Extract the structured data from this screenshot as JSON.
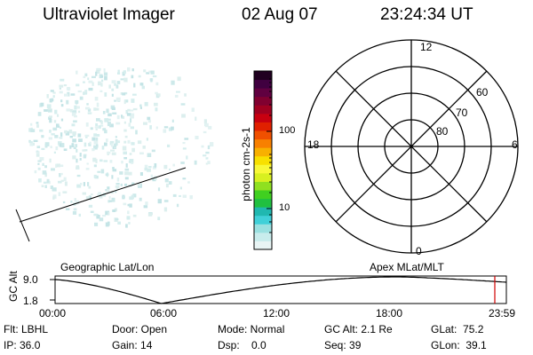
{
  "header": {
    "title": "Ultraviolet Imager",
    "date": "02 Aug 07",
    "time": "23:24:34 UT"
  },
  "colorbar": {
    "label": "photon cm-2s-1",
    "ticks": [
      "100",
      "10"
    ],
    "colors": [
      "#e8f4f4",
      "#c8ecec",
      "#9ae0e0",
      "#40d0d8",
      "#20b8b0",
      "#20c040",
      "#40d020",
      "#90e020",
      "#d8f020",
      "#f8f838",
      "#f8e000",
      "#f8b000",
      "#f88000",
      "#f05000",
      "#e02000",
      "#c80010",
      "#a00020",
      "#800030",
      "#600040",
      "#400040",
      "#200020"
    ]
  },
  "polar": {
    "labels": {
      "top": "12",
      "bottom": "0",
      "left": "18",
      "right": "6",
      "lat60": "60",
      "lat70": "70",
      "lat80": "80"
    }
  },
  "timeline": {
    "left_title": "Geographic Lat/Lon",
    "right_title": "Apex MLat/MLT",
    "axis_label": "GC Alt",
    "y_ticks": [
      "9.0",
      "1.8"
    ],
    "x_ticks": [
      "00:00",
      "06:00",
      "12:00",
      "18:00",
      "23:59"
    ]
  },
  "status": {
    "flt": "Flt: LBHL",
    "ip": "IP: 36.0",
    "door": "Door: Open",
    "gain": "Gain: 14",
    "mode": "Mode: Normal",
    "dsp": "Dsp:    0.0",
    "gcalt": "GC Alt: 2.1 Re",
    "seq": "Seq: 39",
    "glat": "GLat:  75.2",
    "glon": "GLon:  39.1"
  }
}
